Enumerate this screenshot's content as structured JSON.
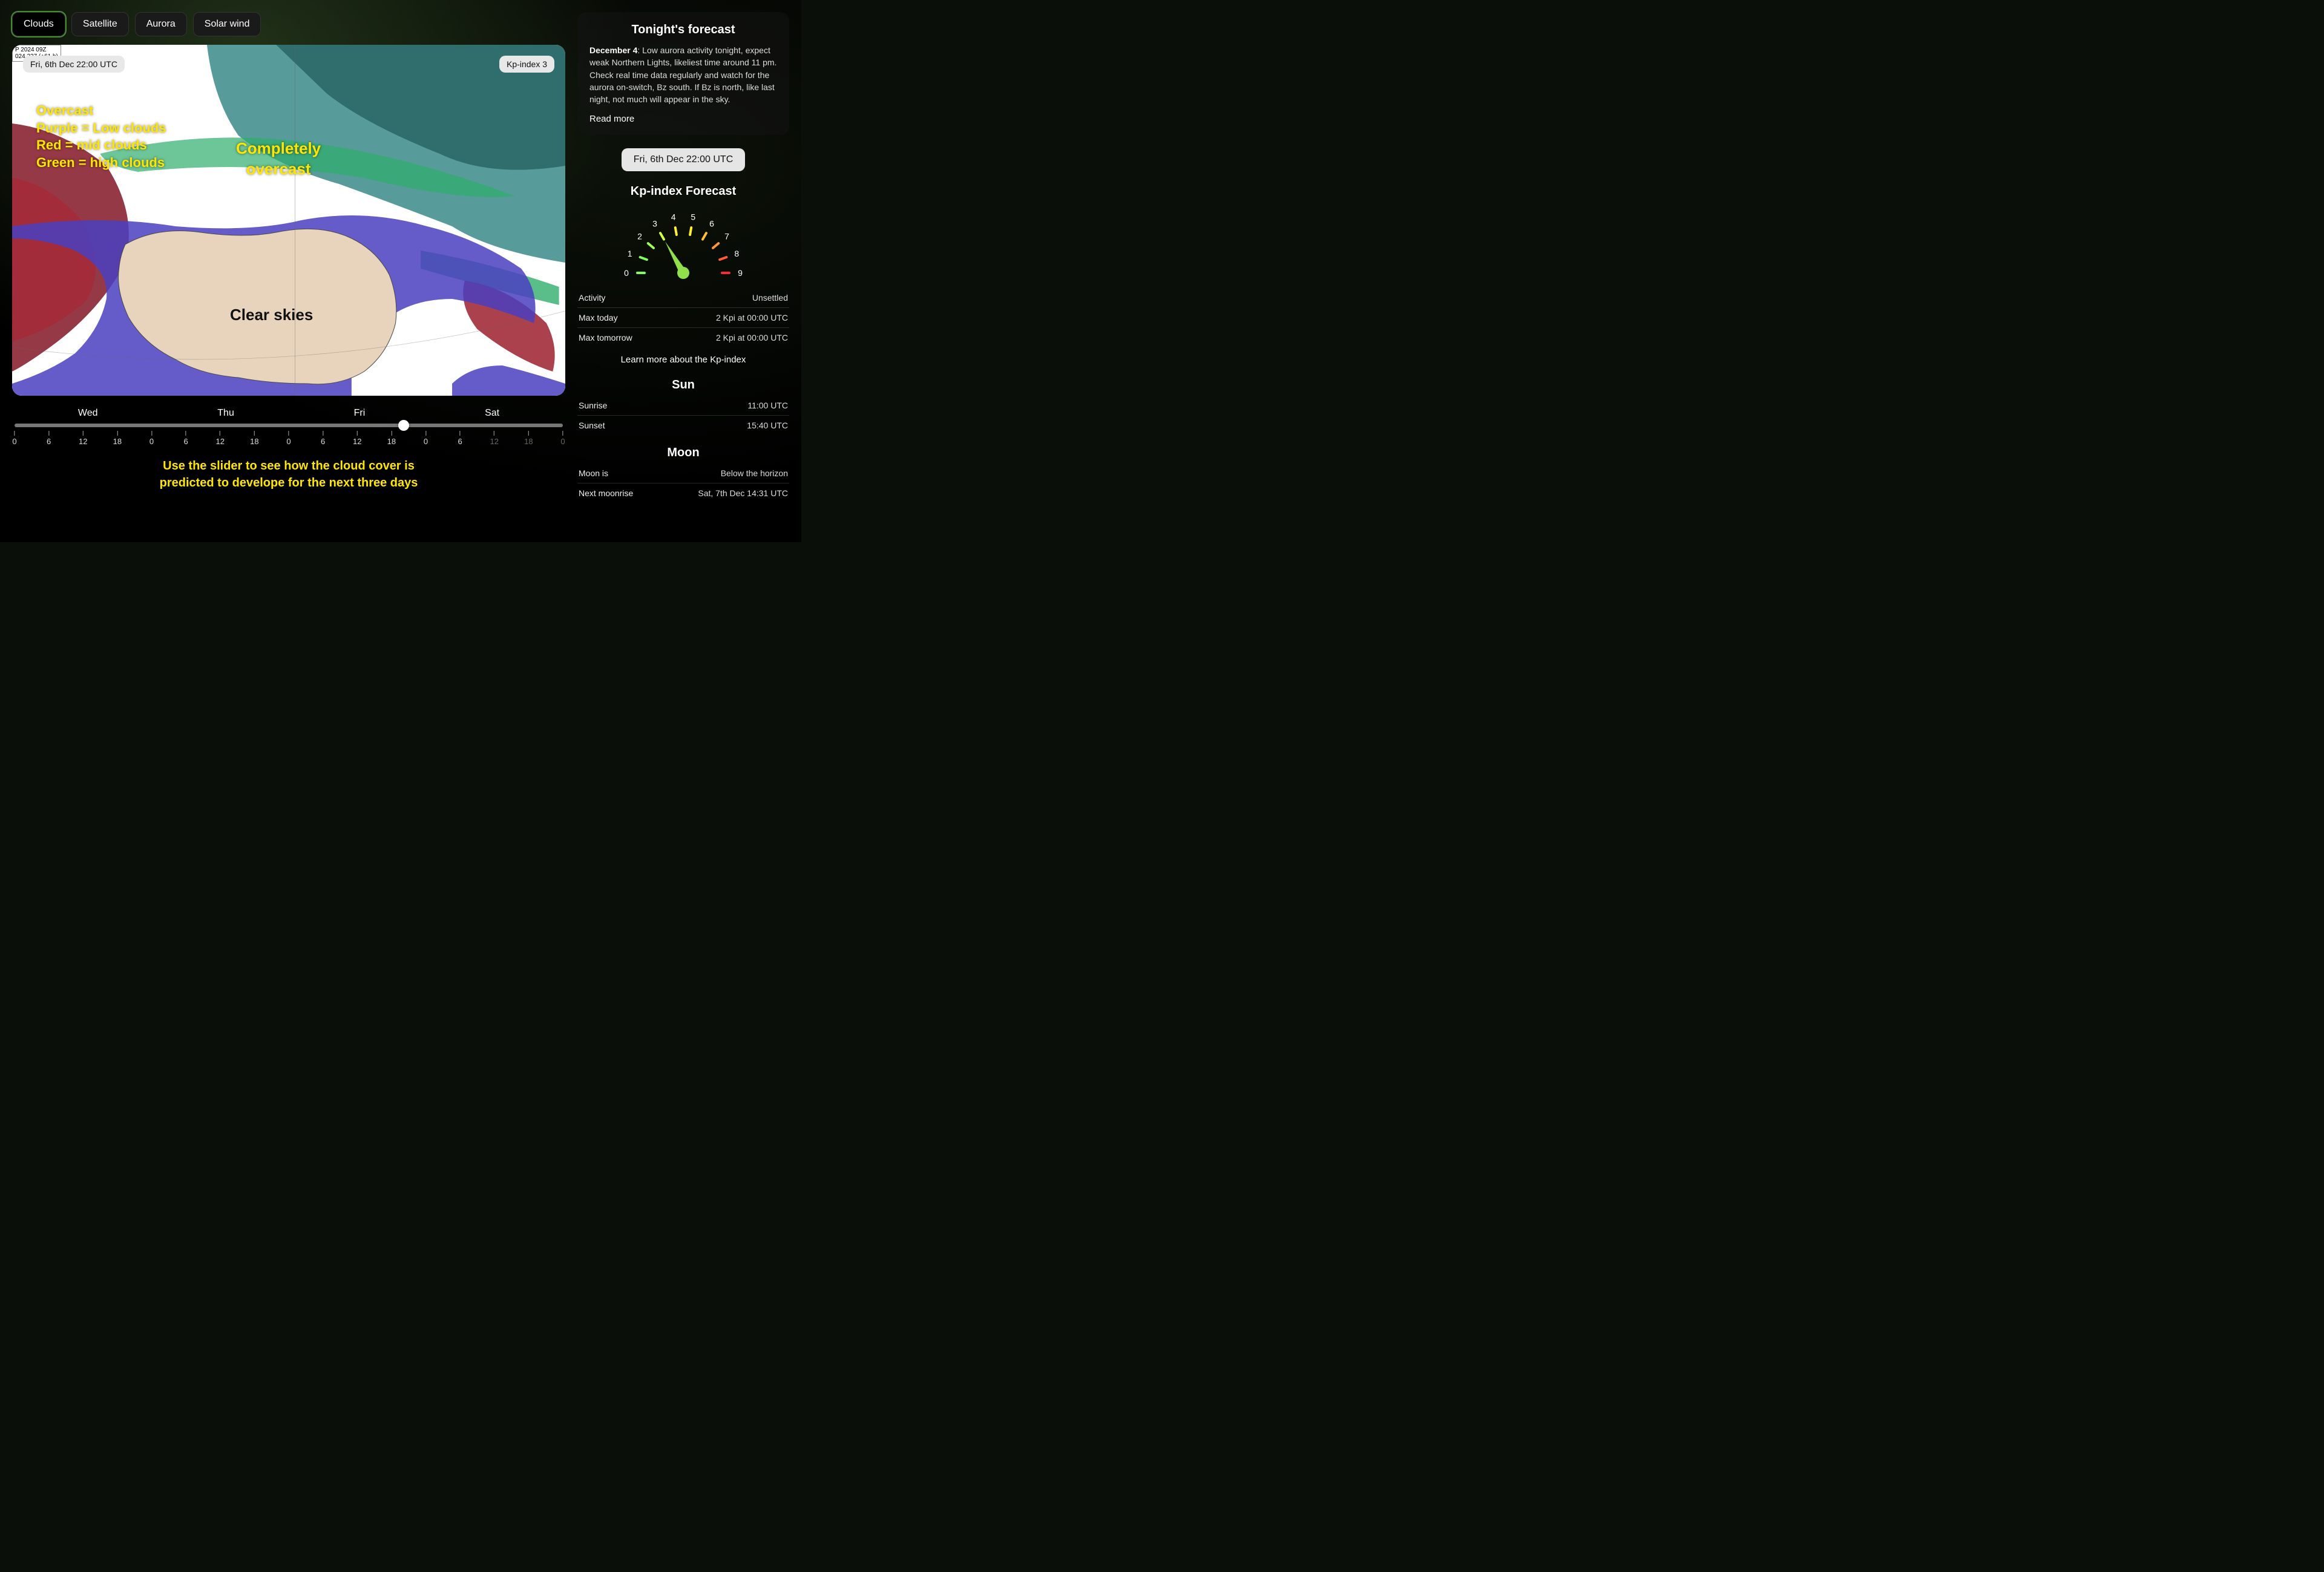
{
  "tabs": {
    "items": [
      "Clouds",
      "Satellite",
      "Aurora",
      "Solar wind"
    ],
    "active_index": 0
  },
  "map": {
    "model_stamp": "P 2024 09Z\n024 227 (+61 h)",
    "badge_time": "Fri, 6th Dec 22:00 UTC",
    "badge_kp": "Kp-index 3",
    "annotations": {
      "legend_lines": [
        "Overcast",
        "Purple = Low clouds",
        "Red = mid clouds",
        "Green = high clouds"
      ],
      "overcast_label": "Completely\novercast",
      "clear_label": "Clear skies"
    },
    "colors": {
      "ocean": "#ffffff",
      "land_clear": "#e8d4bc",
      "low_clouds": "#4a3fbf",
      "mid_clouds": "#a22c3a",
      "high_clouds": "#2fae6b",
      "teal_overcast": "#3a8a8a",
      "dark_teal": "#1f5a5a",
      "coastline": "#4a4a4a"
    }
  },
  "timeline": {
    "days": [
      "Wed",
      "Thu",
      "Fri",
      "Sat"
    ],
    "hour_ticks": [
      {
        "h": "0",
        "dim": false
      },
      {
        "h": "6",
        "dim": false
      },
      {
        "h": "12",
        "dim": false
      },
      {
        "h": "18",
        "dim": false
      },
      {
        "h": "0",
        "dim": false
      },
      {
        "h": "6",
        "dim": false
      },
      {
        "h": "12",
        "dim": false
      },
      {
        "h": "18",
        "dim": false
      },
      {
        "h": "0",
        "dim": false
      },
      {
        "h": "6",
        "dim": false
      },
      {
        "h": "12",
        "dim": false
      },
      {
        "h": "18",
        "dim": false
      },
      {
        "h": "0",
        "dim": false
      },
      {
        "h": "6",
        "dim": false
      },
      {
        "h": "12",
        "dim": true
      },
      {
        "h": "18",
        "dim": true
      },
      {
        "h": "0",
        "dim": true
      }
    ],
    "thumb_percent": 71,
    "caption": "Use the slider to see how the cloud cover is\npredicted to develope for the next three days"
  },
  "forecast": {
    "title": "Tonight's forecast",
    "date_label": "December 4",
    "body": ": Low aurora activity tonight, expect weak Northern Lights, likeliest time around 11 pm. Check real time data regularly and watch for the aurora on-switch, Bz south. If Bz is north, like last night, not much will appear in the sky.",
    "read_more": "Read more"
  },
  "current_time_pill": "Fri, 6th Dec 22:00 UTC",
  "kp": {
    "title": "Kp-index Forecast",
    "value": 3,
    "scale_labels": [
      "0",
      "1",
      "2",
      "3",
      "4",
      "5",
      "6",
      "7",
      "8",
      "9"
    ],
    "tick_colors": [
      "#7fff5a",
      "#7fff5a",
      "#9fff5a",
      "#cfff40",
      "#ffef30",
      "#ffef30",
      "#ffbf30",
      "#ff9830",
      "#ff5a3a",
      "#ff2a2a"
    ],
    "needle_color": "#8fe04a",
    "rows": [
      {
        "label": "Activity",
        "value": "Unsettled"
      },
      {
        "label": "Max today",
        "value": "2 Kpi at 00:00 UTC"
      },
      {
        "label": "Max tomorrow",
        "value": "2 Kpi at 00:00 UTC"
      }
    ],
    "learn_more": "Learn more about the Kp-index"
  },
  "sun": {
    "title": "Sun",
    "rows": [
      {
        "label": "Sunrise",
        "value": "11:00 UTC"
      },
      {
        "label": "Sunset",
        "value": "15:40 UTC"
      }
    ]
  },
  "moon": {
    "title": "Moon",
    "rows": [
      {
        "label": "Moon is",
        "value": "Below the horizon"
      },
      {
        "label": "Next moonrise",
        "value": "Sat, 7th Dec 14:31 UTC"
      }
    ]
  }
}
